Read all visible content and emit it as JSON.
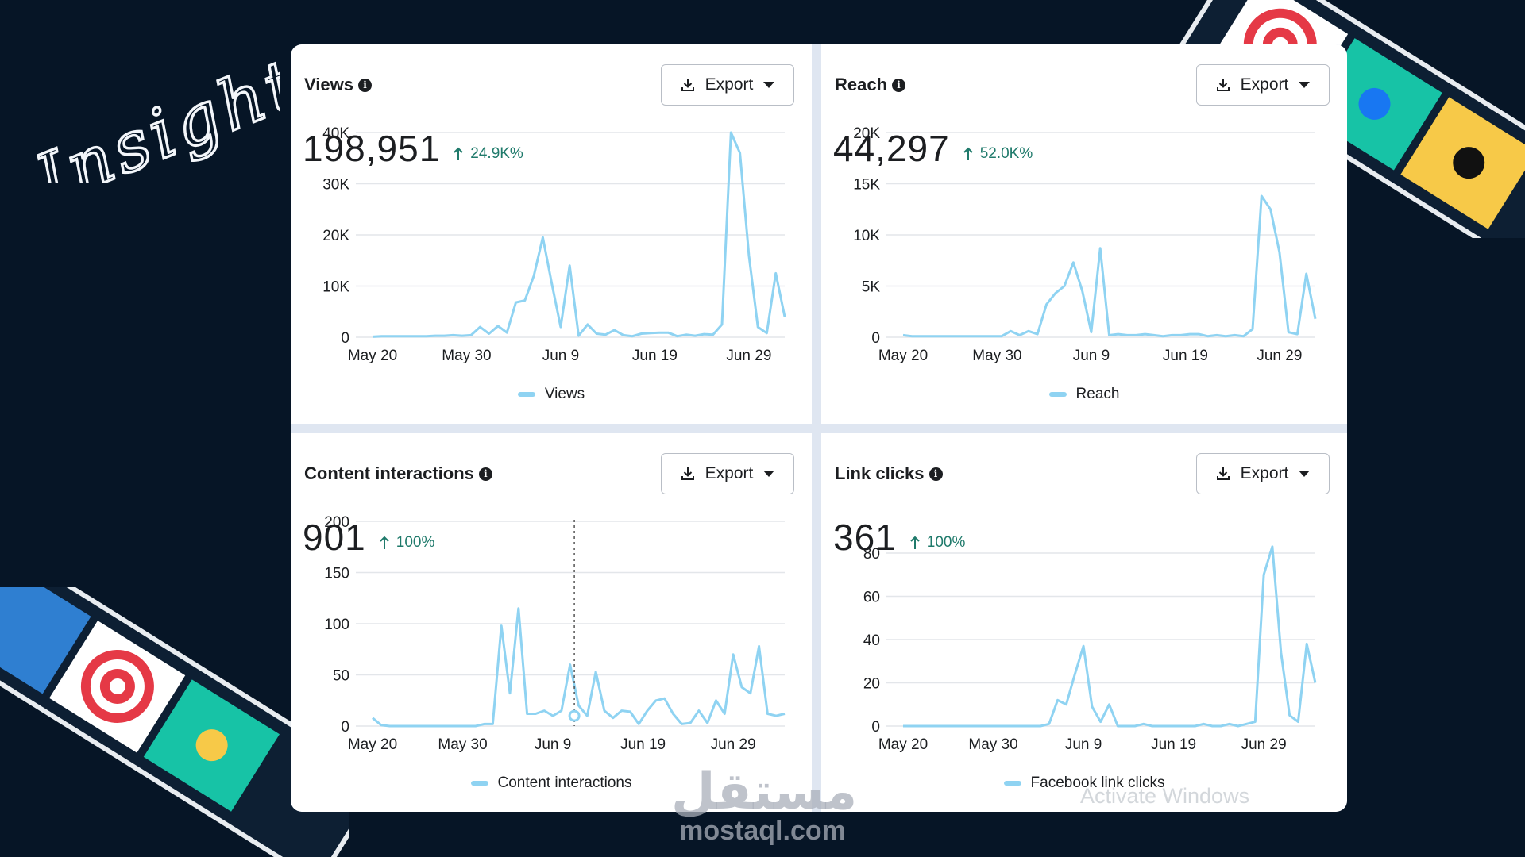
{
  "header": {
    "title": "Insights"
  },
  "colors": {
    "background": "#061526",
    "line": "#8fd3f2",
    "positive": "#1f7a6b",
    "grid": "#e3e6ea"
  },
  "export_label": "Export",
  "panels": [
    {
      "title": "Views",
      "value": "198,951",
      "change": "24.9K%",
      "legend": "Views"
    },
    {
      "title": "Reach",
      "value": "44,297",
      "change": "52.0K%",
      "legend": "Reach"
    },
    {
      "title": "Content interactions",
      "value": "901",
      "change": "100%",
      "legend": "Content interactions"
    },
    {
      "title": "Link clicks",
      "value": "361",
      "change": "100%",
      "legend": "Facebook link clicks"
    }
  ],
  "chart_data": [
    {
      "type": "line",
      "title": "Views",
      "x_ticks": [
        "May 20",
        "May 30",
        "Jun 9",
        "Jun 19",
        "Jun 29"
      ],
      "y_ticks": [
        "0",
        "10K",
        "20K",
        "30K",
        "40K"
      ],
      "ylim": [
        0,
        40000
      ],
      "series": [
        {
          "name": "Views",
          "values": [
            100,
            200,
            200,
            200,
            200,
            200,
            200,
            300,
            300,
            400,
            300,
            400,
            2000,
            700,
            2200,
            900,
            6800,
            7200,
            12000,
            19500,
            10500,
            2000,
            14000,
            300,
            2500,
            700,
            500,
            1400,
            400,
            200,
            700,
            800,
            900,
            900,
            200,
            500,
            300,
            600,
            500,
            2500,
            40000,
            36000,
            16000,
            2000,
            800,
            12500,
            4000
          ]
        }
      ],
      "grid": true,
      "legend_position": "bottom"
    },
    {
      "type": "line",
      "title": "Reach",
      "x_ticks": [
        "May 20",
        "May 30",
        "Jun 9",
        "Jun 19",
        "Jun 29"
      ],
      "y_ticks": [
        "0",
        "5K",
        "10K",
        "15K",
        "20K"
      ],
      "ylim": [
        0,
        20000
      ],
      "series": [
        {
          "name": "Reach",
          "values": [
            200,
            100,
            100,
            100,
            100,
            100,
            100,
            100,
            100,
            100,
            100,
            100,
            600,
            200,
            600,
            300,
            3200,
            4300,
            5000,
            7300,
            4500,
            500,
            8700,
            200,
            300,
            200,
            200,
            300,
            200,
            100,
            200,
            200,
            300,
            300,
            100,
            200,
            100,
            200,
            100,
            800,
            13800,
            12500,
            8300,
            500,
            300,
            6200,
            1800
          ]
        }
      ],
      "grid": true,
      "legend_position": "bottom"
    },
    {
      "type": "line",
      "title": "Content interactions",
      "x_ticks": [
        "May 20",
        "May 30",
        "Jun 9",
        "Jun 19",
        "Jun 29"
      ],
      "y_ticks": [
        "0",
        "50",
        "100",
        "150",
        "200"
      ],
      "ylim": [
        0,
        200
      ],
      "series": [
        {
          "name": "Content interactions",
          "values": [
            8,
            1,
            0,
            0,
            0,
            0,
            0,
            0,
            0,
            0,
            0,
            0,
            0,
            2,
            2,
            98,
            32,
            115,
            12,
            12,
            15,
            10,
            15,
            60,
            20,
            10,
            53,
            15,
            8,
            15,
            14,
            2,
            15,
            25,
            27,
            12,
            2,
            3,
            15,
            3,
            25,
            12,
            70,
            38,
            32,
            78,
            12,
            10,
            12
          ]
        }
      ],
      "grid": true,
      "legend_position": "bottom"
    },
    {
      "type": "line",
      "title": "Link clicks",
      "x_ticks": [
        "May 20",
        "May 30",
        "Jun 9",
        "Jun 19",
        "Jun 29"
      ],
      "y_ticks": [
        "0",
        "20",
        "40",
        "60",
        "80"
      ],
      "ylim": [
        0,
        80
      ],
      "series": [
        {
          "name": "Facebook link clicks",
          "values": [
            0,
            0,
            0,
            0,
            0,
            0,
            0,
            0,
            0,
            0,
            0,
            0,
            0,
            0,
            0,
            0,
            0,
            1,
            12,
            10,
            24,
            37,
            9,
            2,
            10,
            0,
            0,
            0,
            1,
            0,
            0,
            0,
            0,
            0,
            0,
            1,
            0,
            0,
            1,
            0,
            1,
            2,
            70,
            83,
            34,
            5,
            2,
            38,
            20
          ]
        }
      ],
      "grid": true,
      "legend_position": "bottom"
    }
  ],
  "watermark": {
    "arabic": "مستقل",
    "latin": "mostaql.com"
  },
  "system_notice": "Activate Windows"
}
